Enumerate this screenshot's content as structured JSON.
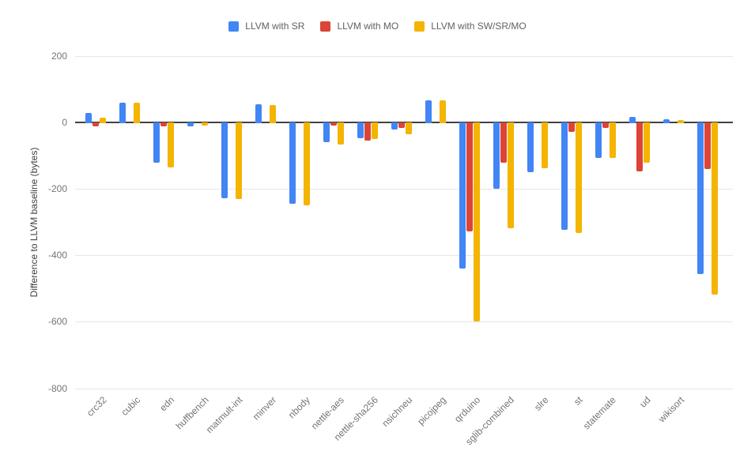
{
  "legend": {
    "items": [
      {
        "label": "LLVM with SR",
        "color": "#4285f4"
      },
      {
        "label": "LLVM with MO",
        "color": "#db4437"
      },
      {
        "label": "LLVM with SW/SR/MO",
        "color": "#f4b400"
      }
    ]
  },
  "chart_data": {
    "type": "bar",
    "title": "",
    "xlabel": "",
    "ylabel": "Difference to LLVM baseline (bytes)",
    "ylim": [
      -800,
      200
    ],
    "yticks": [
      200,
      0,
      -200,
      -400,
      -600,
      -800
    ],
    "grid": true,
    "legend_position": "top-center",
    "categories": [
      "crc32",
      "cubic",
      "edn",
      "huffbench",
      "matmult-int",
      "minver",
      "nbody",
      "nettle-aes",
      "nettle-sha256",
      "nsichneu",
      "picojpeg",
      "qrduino",
      "sglib-combined",
      "slre",
      "st",
      "statemate",
      "ud",
      "wikisort",
      ""
    ],
    "series": [
      {
        "name": "LLVM with SR",
        "color": "#4285f4",
        "values": [
          28,
          60,
          -121,
          -11,
          -227,
          55,
          -245,
          -59,
          -46,
          -21,
          68,
          -439,
          -198,
          -150,
          -322,
          -107,
          18,
          10,
          -455
        ]
      },
      {
        "name": "LLVM with MO",
        "color": "#db4437",
        "values": [
          -11,
          0,
          -11,
          0,
          0,
          0,
          0,
          -8,
          -55,
          -16,
          0,
          -328,
          -121,
          0,
          -28,
          -16,
          -146,
          0,
          -140
        ]
      },
      {
        "name": "LLVM with SW/SR/MO",
        "color": "#f4b400",
        "values": [
          14,
          60,
          -134,
          -8,
          -230,
          53,
          -249,
          -65,
          -49,
          -36,
          68,
          -597,
          -318,
          -137,
          -332,
          -107,
          -120,
          7,
          -518
        ]
      }
    ]
  }
}
